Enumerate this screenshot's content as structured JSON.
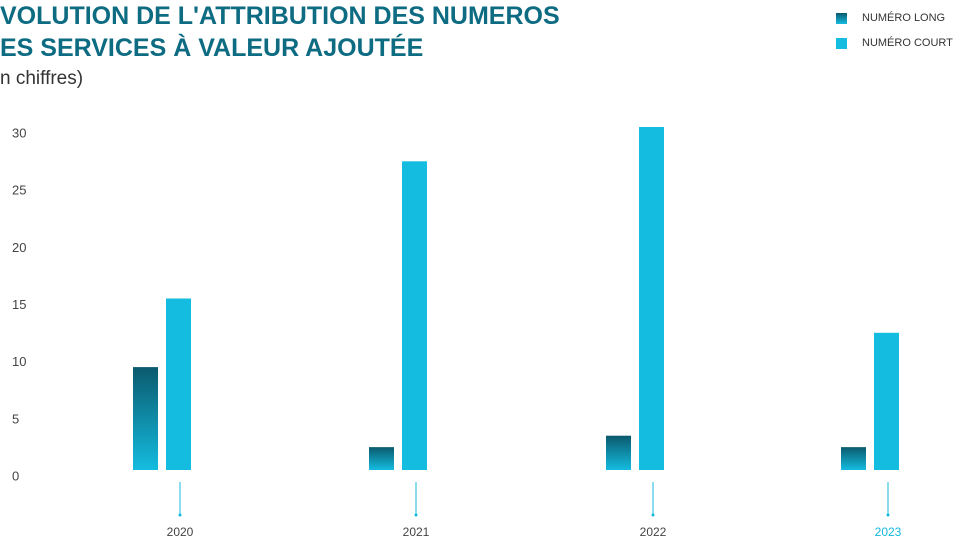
{
  "chart_data": {
    "type": "bar",
    "title_lines": [
      "VOLUTION DE L'ATTRIBUTION DES NUMEROS",
      "ES  SERVICES À VALEUR AJOUTÉE"
    ],
    "subtitle": "n chiffres)",
    "categories": [
      "2020",
      "2021",
      "2022",
      "2023"
    ],
    "series": [
      {
        "name": "NUMÉRO LONG",
        "color": "#0b5a6d",
        "values": [
          9,
          2,
          3,
          2
        ]
      },
      {
        "name": "NUMÉRO COURT",
        "color": "#14bce0",
        "values": [
          15,
          27,
          30,
          12
        ]
      }
    ],
    "ylim": [
      0,
      30
    ],
    "yticks": [
      0,
      5,
      10,
      15,
      20,
      25,
      30
    ],
    "grid": false,
    "legend": "top-right"
  }
}
